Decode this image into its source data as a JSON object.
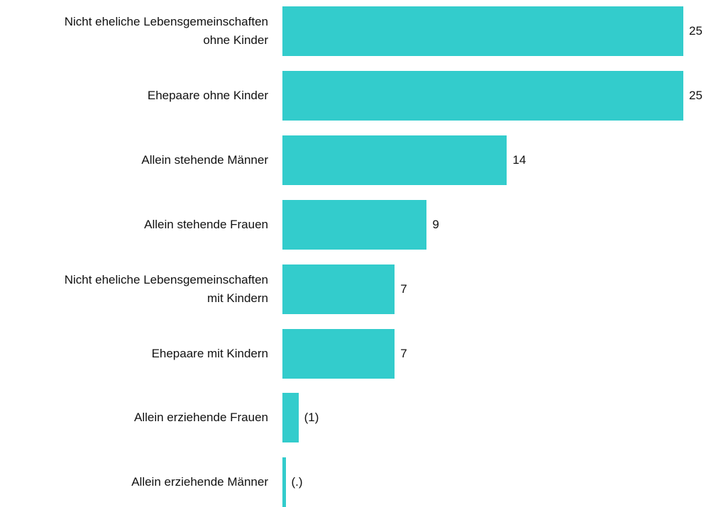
{
  "chart_data": {
    "type": "bar",
    "orientation": "horizontal",
    "color": "#33cccc",
    "categories": [
      "Nicht eheliche Lebensgemeinschaften\nohne Kinder",
      "Ehepaare ohne Kinder",
      "Allein stehende Männer",
      "Allein stehende Frauen",
      "Nicht eheliche Lebensgemeinschaften\nmit Kindern",
      "Ehepaare mit Kindern",
      "Allein erziehende Frauen",
      "Allein erziehende Männer"
    ],
    "values": [
      25,
      25,
      14,
      9,
      7,
      7,
      1,
      0.2
    ],
    "value_labels": [
      "25",
      "25",
      "14",
      "9",
      "7",
      "7",
      "(1)",
      "(.)"
    ]
  }
}
